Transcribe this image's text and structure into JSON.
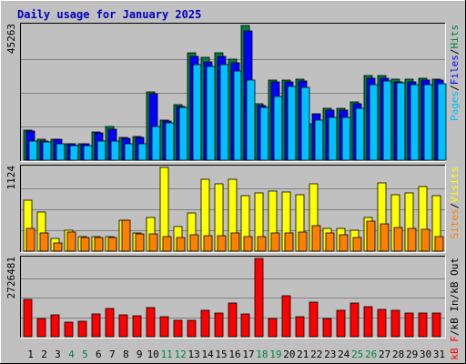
{
  "chart_data": {
    "type": "bar",
    "title": "Daily usage for January 2025",
    "categories": [
      "1",
      "2",
      "3",
      "4",
      "5",
      "6",
      "7",
      "8",
      "9",
      "10",
      "11",
      "12",
      "13",
      "14",
      "15",
      "16",
      "17",
      "18",
      "19",
      "20",
      "21",
      "22",
      "23",
      "24",
      "25",
      "26",
      "27",
      "28",
      "29",
      "30",
      "31"
    ],
    "weekend_days": [
      "4",
      "5",
      "11",
      "12",
      "18",
      "19",
      "25",
      "26"
    ],
    "panels": [
      {
        "name": "hits-files-pages",
        "ymax_label": "45263",
        "ylim": [
          0,
          45263
        ],
        "ylabel_parts": [
          "Pages",
          "/",
          "Files",
          "/",
          "Hits"
        ],
        "series": [
          {
            "name": "Hits",
            "color": "#008040",
            "values": [
              10100,
              7100,
              7100,
              5600,
              5600,
              9600,
              11200,
              7700,
              7800,
              23000,
              13500,
              18600,
              36000,
              34500,
              36000,
              34000,
              45263,
              19000,
              26800,
              26800,
              27300,
              12300,
              17300,
              17300,
              19500,
              28300,
              28500,
              27100,
              27100,
              27500,
              27300
            ]
          },
          {
            "name": "Files",
            "color": "#0000ff",
            "values": [
              9800,
              6400,
              6900,
              5400,
              5400,
              9100,
              10300,
              7300,
              7500,
              22200,
              13000,
              18000,
              35000,
              33000,
              35000,
              32700,
              43500,
              18300,
              26300,
              26300,
              26500,
              15600,
              16700,
              16700,
              19000,
              27500,
              27500,
              26300,
              26300,
              26800,
              26800
            ]
          },
          {
            "name": "Pages",
            "color": "#00c0ff",
            "values": [
              6300,
              6000,
              5400,
              4800,
              5000,
              6300,
              6300,
              5600,
              5500,
              11200,
              12500,
              17700,
              32000,
              31500,
              32000,
              30000,
              27000,
              17800,
              21500,
              24700,
              24500,
              13600,
              14300,
              14300,
              17500,
              25500,
              26500,
              26000,
              25500,
              25500,
              25700
            ]
          }
        ]
      },
      {
        "name": "visits-sites",
        "ymax_label": "1124",
        "ylim": [
          0,
          1124
        ],
        "ylabel_parts": [
          "Sites",
          "/",
          "Visits"
        ],
        "series": [
          {
            "name": "Visits",
            "color": "#ffff00",
            "values": [
              680,
              520,
              170,
              280,
              200,
              200,
              200,
              420,
              240,
              450,
              1124,
              330,
              510,
              960,
              910,
              960,
              740,
              780,
              810,
              800,
              760,
              900,
              300,
              300,
              280,
              450,
              920,
              760,
              780,
              870,
              750
            ]
          },
          {
            "name": "Sites",
            "color": "#ff8000",
            "values": [
              310,
              250,
              110,
              260,
              180,
              180,
              180,
              410,
              230,
              230,
              200,
              180,
              220,
              210,
              210,
              240,
              200,
              200,
              240,
              250,
              260,
              340,
              240,
              220,
              180,
              400,
              370,
              320,
              310,
              290,
              200
            ]
          }
        ]
      },
      {
        "name": "kb",
        "ymax_label": "2726481",
        "ylim": [
          0,
          2726481
        ],
        "ylabel_parts": [
          "kB F",
          "/",
          "kB In",
          "/",
          "kB Out"
        ],
        "series": [
          {
            "name": "kB F",
            "color": "#ff0000",
            "values": [
              1310000,
              640000,
              760000,
              520000,
              550000,
              780000,
              970000,
              750000,
              740000,
              1010000,
              700000,
              580000,
              580000,
              930000,
              840000,
              1180000,
              800000,
              2726481,
              640000,
              1420000,
              700000,
              1210000,
              640000,
              930000,
              1170000,
              1040000,
              940000,
              910000,
              840000,
              830000,
              840000
            ]
          }
        ]
      }
    ]
  }
}
